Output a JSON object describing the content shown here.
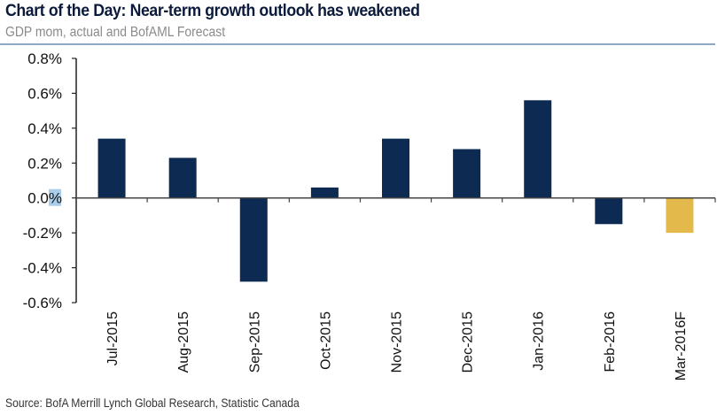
{
  "header": {
    "title": "Chart of the Day: Near-term growth outlook has weakened",
    "subtitle": "GDP mom, actual and BofAML Forecast"
  },
  "footer": {
    "source": "Source: BofA Merrill Lynch Global Research, Statistic Canada"
  },
  "colors": {
    "actual": "#0c2a52",
    "forecast": "#e2b94a",
    "rule": "#8fa8c8",
    "selection_highlight": "#a9cdeb"
  },
  "chart_data": {
    "type": "bar",
    "title": "Chart of the Day: Near-term growth outlook has weakened",
    "subtitle": "GDP mom, actual and BofAML Forecast",
    "xlabel": "",
    "ylabel": "",
    "categories": [
      "Jul-2015",
      "Aug-2015",
      "Sep-2015",
      "Oct-2015",
      "Nov-2015",
      "Dec-2015",
      "Jan-2016",
      "Feb-2016",
      "Mar-2016F"
    ],
    "values": [
      0.34,
      0.23,
      -0.48,
      0.06,
      0.34,
      0.28,
      0.56,
      -0.15,
      -0.2
    ],
    "series_type": [
      "actual",
      "actual",
      "actual",
      "actual",
      "actual",
      "actual",
      "actual",
      "actual",
      "forecast"
    ],
    "unit": "%",
    "ylim": [
      -0.6,
      0.8
    ],
    "yticks": [
      0.8,
      0.6,
      0.4,
      0.2,
      0.0,
      -0.2,
      -0.4,
      -0.6
    ],
    "ytick_labels": [
      "0.8%",
      "0.6%",
      "0.4%",
      "0.2%",
      "0.0%",
      "-0.2%",
      "-0.4%",
      "-0.6%"
    ],
    "grid": false,
    "legend": "none",
    "source": "Source: BofA Merrill Lynch Global Research, Statistic Canada"
  }
}
